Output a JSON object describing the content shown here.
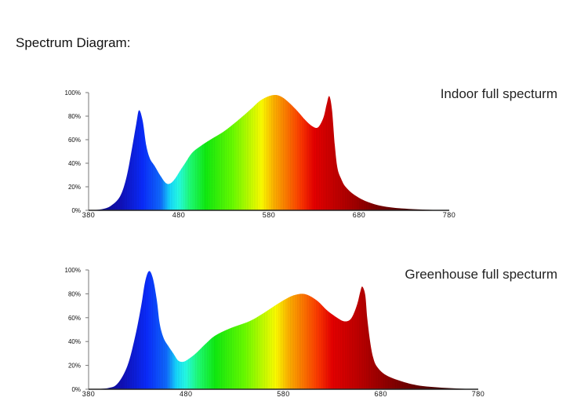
{
  "heading": "Spectrum Diagram:",
  "chart_data": [
    {
      "type": "area",
      "title": "Indoor full specturm",
      "xlabel": "",
      "ylabel": "",
      "xlim": [
        380,
        780
      ],
      "ylim": [
        0,
        100
      ],
      "x_ticks": [
        "380",
        "480",
        "580",
        "680",
        "780"
      ],
      "y_ticks": [
        "0%",
        "20%",
        "40%",
        "60%",
        "80%",
        "100%"
      ],
      "grid": false,
      "fill": "wavelength-colored spectrum",
      "x": [
        380,
        395,
        405,
        415,
        422,
        428,
        433,
        436,
        440,
        444,
        448,
        453,
        460,
        466,
        471,
        476,
        481,
        487,
        495,
        505,
        515,
        530,
        545,
        560,
        570,
        580,
        588,
        595,
        603,
        612,
        620,
        627,
        633,
        637,
        641,
        644,
        647,
        650,
        653,
        656,
        660,
        665,
        675,
        690,
        710,
        740,
        780
      ],
      "values": [
        0,
        1,
        4,
        12,
        28,
        52,
        74,
        85,
        76,
        55,
        44,
        38,
        29,
        23,
        23,
        27,
        33,
        40,
        49,
        55,
        60,
        67,
        76,
        86,
        93,
        97,
        98,
        96,
        91,
        84,
        77,
        72,
        70,
        73,
        80,
        90,
        97,
        85,
        56,
        36,
        27,
        20,
        13,
        7,
        3,
        1,
        0
      ]
    },
    {
      "type": "area",
      "title": "Greenhouse full specturm",
      "xlabel": "",
      "ylabel": "",
      "xlim": [
        380,
        780
      ],
      "ylim": [
        0,
        100
      ],
      "x_ticks": [
        "380",
        "480",
        "580",
        "680",
        "780"
      ],
      "y_ticks": [
        "0%",
        "20%",
        "40%",
        "60%",
        "80%",
        "100%"
      ],
      "grid": false,
      "fill": "wavelength-colored spectrum",
      "x": [
        380,
        400,
        410,
        420,
        428,
        434,
        438,
        442,
        446,
        450,
        453,
        457,
        462,
        467,
        472,
        477,
        482,
        490,
        500,
        510,
        525,
        545,
        560,
        575,
        588,
        598,
        605,
        615,
        625,
        635,
        642,
        648,
        652,
        656,
        659,
        661,
        664,
        666,
        669,
        672,
        676,
        685,
        700,
        720,
        750,
        780
      ],
      "values": [
        0,
        1,
        5,
        20,
        45,
        70,
        90,
        99,
        93,
        75,
        55,
        43,
        36,
        30,
        24,
        23,
        25,
        30,
        38,
        45,
        51,
        57,
        64,
        72,
        78,
        80,
        79,
        74,
        66,
        60,
        57,
        58,
        63,
        72,
        82,
        86,
        79,
        60,
        40,
        27,
        19,
        12,
        7,
        3,
        1,
        0
      ]
    }
  ]
}
